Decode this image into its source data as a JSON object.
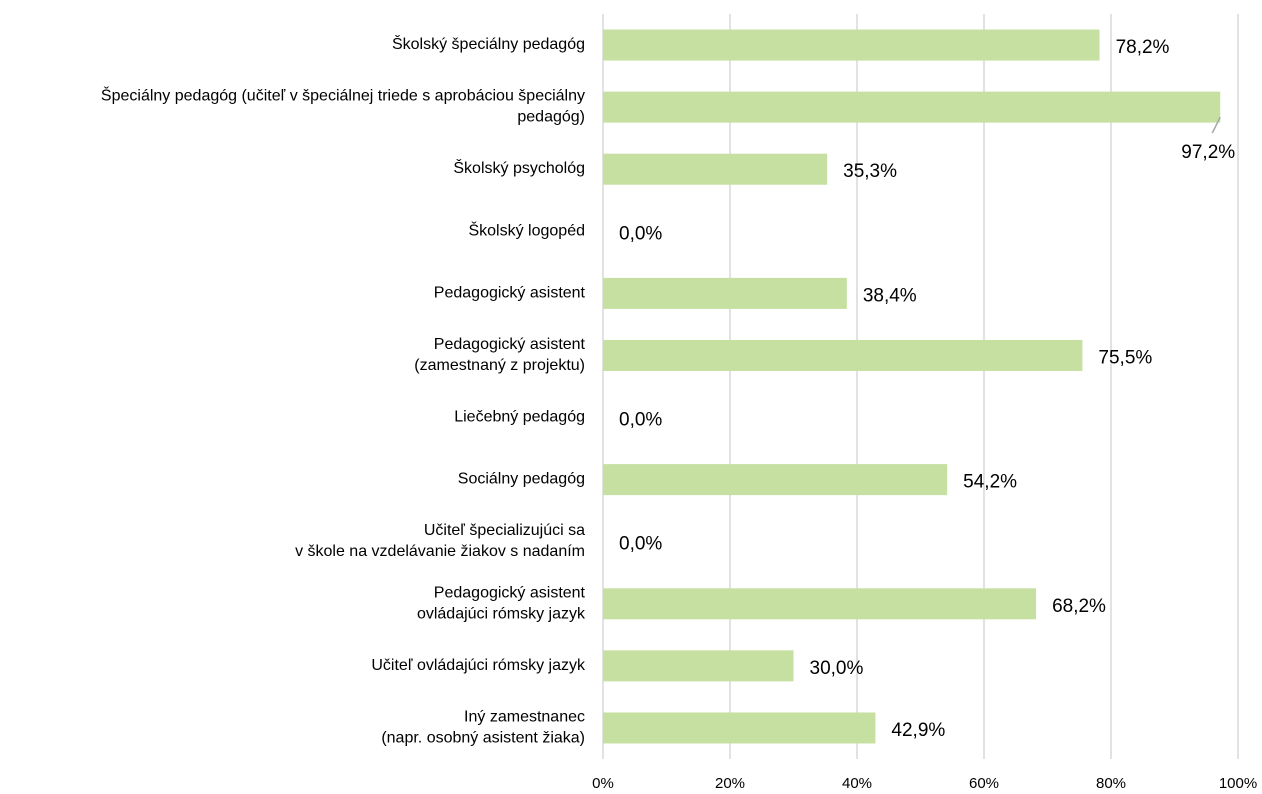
{
  "chart_data": {
    "type": "bar",
    "orientation": "horizontal",
    "categories": [
      [
        "Školský špeciálny pedagóg"
      ],
      [
        "Špeciálny pedagóg (učiteľ v špeciálnej triede s aprobáciou špeciálny",
        "pedagóg)"
      ],
      [
        "Školský psychológ"
      ],
      [
        "Školský logopéd"
      ],
      [
        "Pedagogický asistent"
      ],
      [
        "Pedagogický asistent",
        "(zamestnaný z projektu)"
      ],
      [
        "Liečebný pedagóg"
      ],
      [
        "Sociálny pedagóg"
      ],
      [
        "Učiteľ špecializujúci sa",
        "v škole na vzdelávanie žiakov s nadaním"
      ],
      [
        "Pedagogický asistent",
        "ovládajúci rómsky jazyk"
      ],
      [
        "Učiteľ ovládajúci rómsky jazyk"
      ],
      [
        "Iný zamestnanec",
        "(napr. osobný asistent žiaka)"
      ]
    ],
    "values": [
      78.2,
      97.2,
      35.3,
      0,
      38.4,
      75.5,
      0,
      54.2,
      0,
      68.2,
      30.0,
      42.9
    ],
    "value_labels": [
      "78,2%",
      "97,2%",
      "35,3%",
      "0,0%",
      "38,4%",
      "75,5%",
      "0,0%",
      "54,2%",
      "0,0%",
      "68,2%",
      "30,0%",
      "42,9%"
    ],
    "color": "#c5e0a0",
    "xlim": [
      0,
      100
    ],
    "xticks": [
      {
        "value": 0,
        "label": "0%"
      },
      {
        "value": 20,
        "label": "20%"
      },
      {
        "value": 40,
        "label": "40%"
      },
      {
        "value": 60,
        "label": "60%"
      },
      {
        "value": 80,
        "label": "80%"
      },
      {
        "value": 100,
        "label": "100%"
      }
    ],
    "grid": true
  }
}
